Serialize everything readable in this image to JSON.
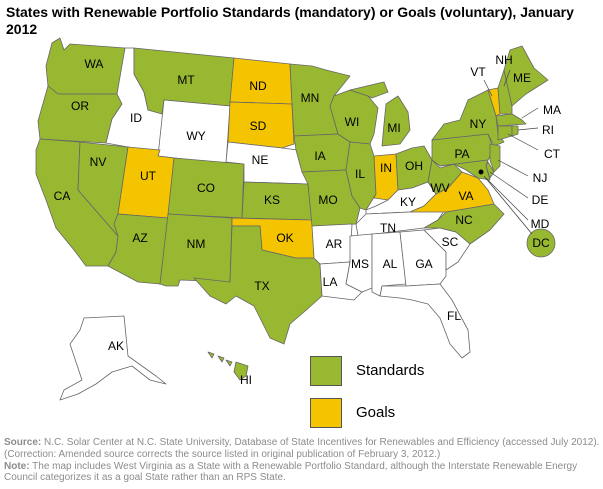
{
  "title": "States with Renewable Portfolio Standards (mandatory) or Goals (voluntary), January 2012",
  "colors": {
    "standards": "#99b832",
    "goals": "#f5c400",
    "none": "#ffffff"
  },
  "legend": {
    "standards": "Standards",
    "goals": "Goals"
  },
  "states": [
    {
      "abbr": "WA",
      "status": "standards"
    },
    {
      "abbr": "OR",
      "status": "standards"
    },
    {
      "abbr": "CA",
      "status": "standards"
    },
    {
      "abbr": "NV",
      "status": "standards"
    },
    {
      "abbr": "ID",
      "status": "none"
    },
    {
      "abbr": "MT",
      "status": "standards"
    },
    {
      "abbr": "WY",
      "status": "none"
    },
    {
      "abbr": "UT",
      "status": "goals"
    },
    {
      "abbr": "AZ",
      "status": "standards"
    },
    {
      "abbr": "CO",
      "status": "standards"
    },
    {
      "abbr": "NM",
      "status": "standards"
    },
    {
      "abbr": "ND",
      "status": "goals"
    },
    {
      "abbr": "SD",
      "status": "goals"
    },
    {
      "abbr": "NE",
      "status": "none"
    },
    {
      "abbr": "KS",
      "status": "standards"
    },
    {
      "abbr": "OK",
      "status": "goals"
    },
    {
      "abbr": "TX",
      "status": "standards"
    },
    {
      "abbr": "MN",
      "status": "standards"
    },
    {
      "abbr": "IA",
      "status": "standards"
    },
    {
      "abbr": "MO",
      "status": "standards"
    },
    {
      "abbr": "AR",
      "status": "none"
    },
    {
      "abbr": "LA",
      "status": "none"
    },
    {
      "abbr": "WI",
      "status": "standards"
    },
    {
      "abbr": "IL",
      "status": "standards"
    },
    {
      "abbr": "MI",
      "status": "standards"
    },
    {
      "abbr": "IN",
      "status": "goals"
    },
    {
      "abbr": "OH",
      "status": "standards"
    },
    {
      "abbr": "KY",
      "status": "none"
    },
    {
      "abbr": "TN",
      "status": "none"
    },
    {
      "abbr": "MS",
      "status": "none"
    },
    {
      "abbr": "AL",
      "status": "none"
    },
    {
      "abbr": "GA",
      "status": "none"
    },
    {
      "abbr": "FL",
      "status": "none"
    },
    {
      "abbr": "SC",
      "status": "none"
    },
    {
      "abbr": "NC",
      "status": "standards"
    },
    {
      "abbr": "VA",
      "status": "goals"
    },
    {
      "abbr": "WV",
      "status": "standards"
    },
    {
      "abbr": "PA",
      "status": "standards"
    },
    {
      "abbr": "NY",
      "status": "standards"
    },
    {
      "abbr": "VT",
      "status": "goals"
    },
    {
      "abbr": "NH",
      "status": "standards"
    },
    {
      "abbr": "ME",
      "status": "standards"
    },
    {
      "abbr": "MA",
      "status": "standards"
    },
    {
      "abbr": "RI",
      "status": "standards"
    },
    {
      "abbr": "CT",
      "status": "standards"
    },
    {
      "abbr": "NJ",
      "status": "standards"
    },
    {
      "abbr": "DE",
      "status": "standards"
    },
    {
      "abbr": "MD",
      "status": "standards"
    },
    {
      "abbr": "DC",
      "status": "standards"
    },
    {
      "abbr": "AK",
      "status": "none"
    },
    {
      "abbr": "HI",
      "status": "standards"
    }
  ],
  "notes": {
    "source_label": "Source:",
    "source_text": " N.C. Solar Center at N.C. State University, Database of State Incentives for Renewables and Efficiency (accessed July 2012). (Correction: Amended source corrects the source listed in original publication of February 3, 2012.)",
    "note_label": "Note:",
    "note_text": " The map includes West Virginia as a State with a Renewable Portfolio Standard, although the Interstate Renewable Energy Council categorizes it as a goal State rather than an RPS State."
  }
}
